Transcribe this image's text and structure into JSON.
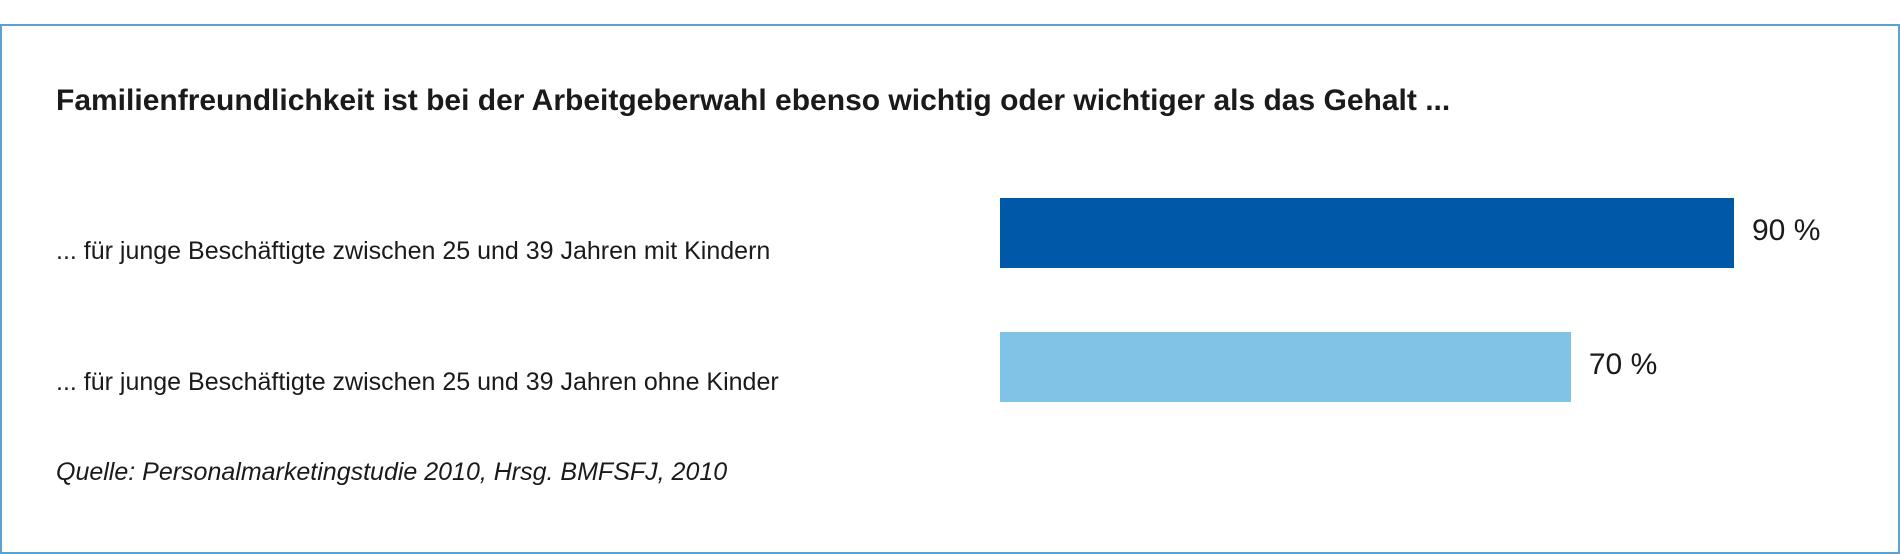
{
  "chart_data": {
    "type": "bar",
    "orientation": "horizontal",
    "title": "Familienfreundlichkeit ist bei der Arbeitgeberwahl ebenso wichtig oder wichtiger als das Gehalt ...",
    "categories": [
      "... für junge Beschäftigte zwischen 25 und 39 Jahren mit Kindern",
      "... für junge Beschäftigte zwischen 25 und 39 Jahren ohne Kinder"
    ],
    "values": [
      90,
      70
    ],
    "value_labels": [
      "90 %",
      "70 %"
    ],
    "bar_colors": [
      "#0059a8",
      "#80c3e6"
    ],
    "xlim": [
      0,
      90
    ],
    "source": "Quelle: Personalmarketingstudie 2010, Hrsg. BMFSFJ, 2010"
  }
}
